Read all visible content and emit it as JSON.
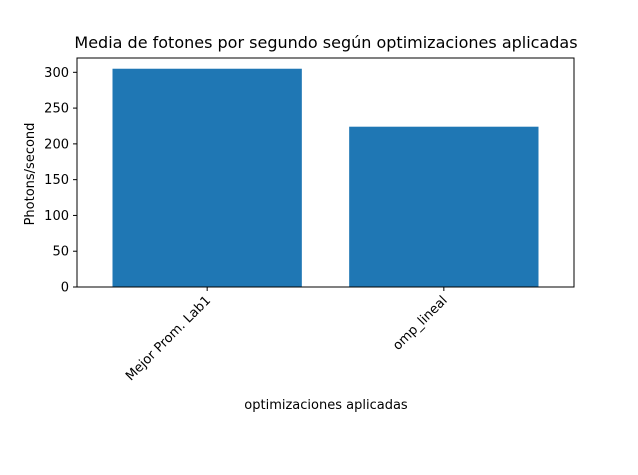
{
  "chart_data": {
    "type": "bar",
    "title": "Media de fotones por segundo según optimizaciones aplicadas",
    "xlabel": "optimizaciones aplicadas",
    "ylabel": "Photons/second",
    "categories": [
      "Mejor Prom. Lab1",
      "omp_lineal"
    ],
    "values": [
      305,
      224
    ],
    "ylim": [
      0,
      320
    ],
    "yticks": [
      0,
      50,
      100,
      150,
      200,
      250,
      300
    ],
    "grid": false,
    "bar_color": "#1f77b4",
    "xtick_rotation_deg": 45
  }
}
